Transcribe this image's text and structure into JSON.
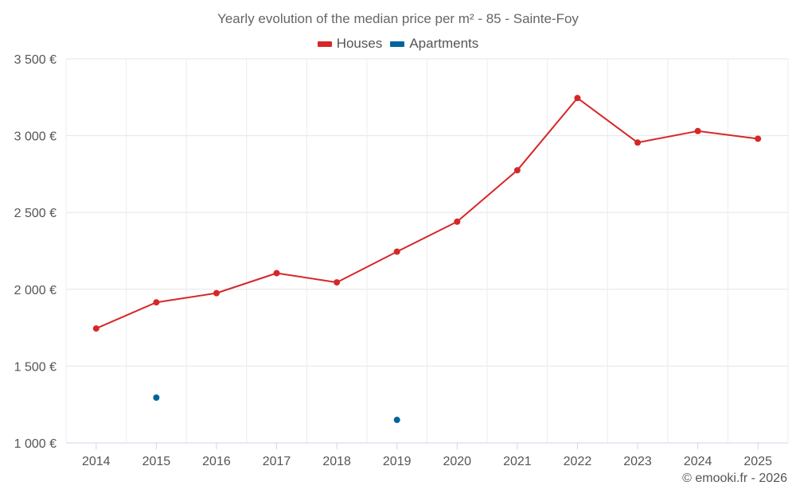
{
  "chart_data": {
    "type": "line",
    "title": "Yearly evolution of the median price per m² - 85 - Sainte-Foy",
    "categories": [
      "2014",
      "2015",
      "2016",
      "2017",
      "2018",
      "2019",
      "2020",
      "2021",
      "2022",
      "2023",
      "2024",
      "2025"
    ],
    "series": [
      {
        "name": "Houses",
        "color": "#d62728",
        "values": [
          1745,
          1915,
          1975,
          2105,
          2045,
          2245,
          2440,
          2775,
          3245,
          2955,
          3030,
          2980
        ]
      },
      {
        "name": "Apartments",
        "color": "#00649d",
        "values": [
          null,
          1295,
          null,
          null,
          null,
          1150,
          null,
          null,
          null,
          null,
          null,
          null
        ]
      }
    ],
    "ylim": [
      1000,
      3500
    ],
    "yticks": [
      1000,
      1500,
      2000,
      2500,
      3000,
      3500
    ],
    "ytick_labels": [
      "1 000 €",
      "1 500 €",
      "2 000 €",
      "2 500 €",
      "3 000 €",
      "3 500 €"
    ],
    "grid": true,
    "legend_position": "top-center",
    "credit": "© emooki.fr - 2026"
  }
}
